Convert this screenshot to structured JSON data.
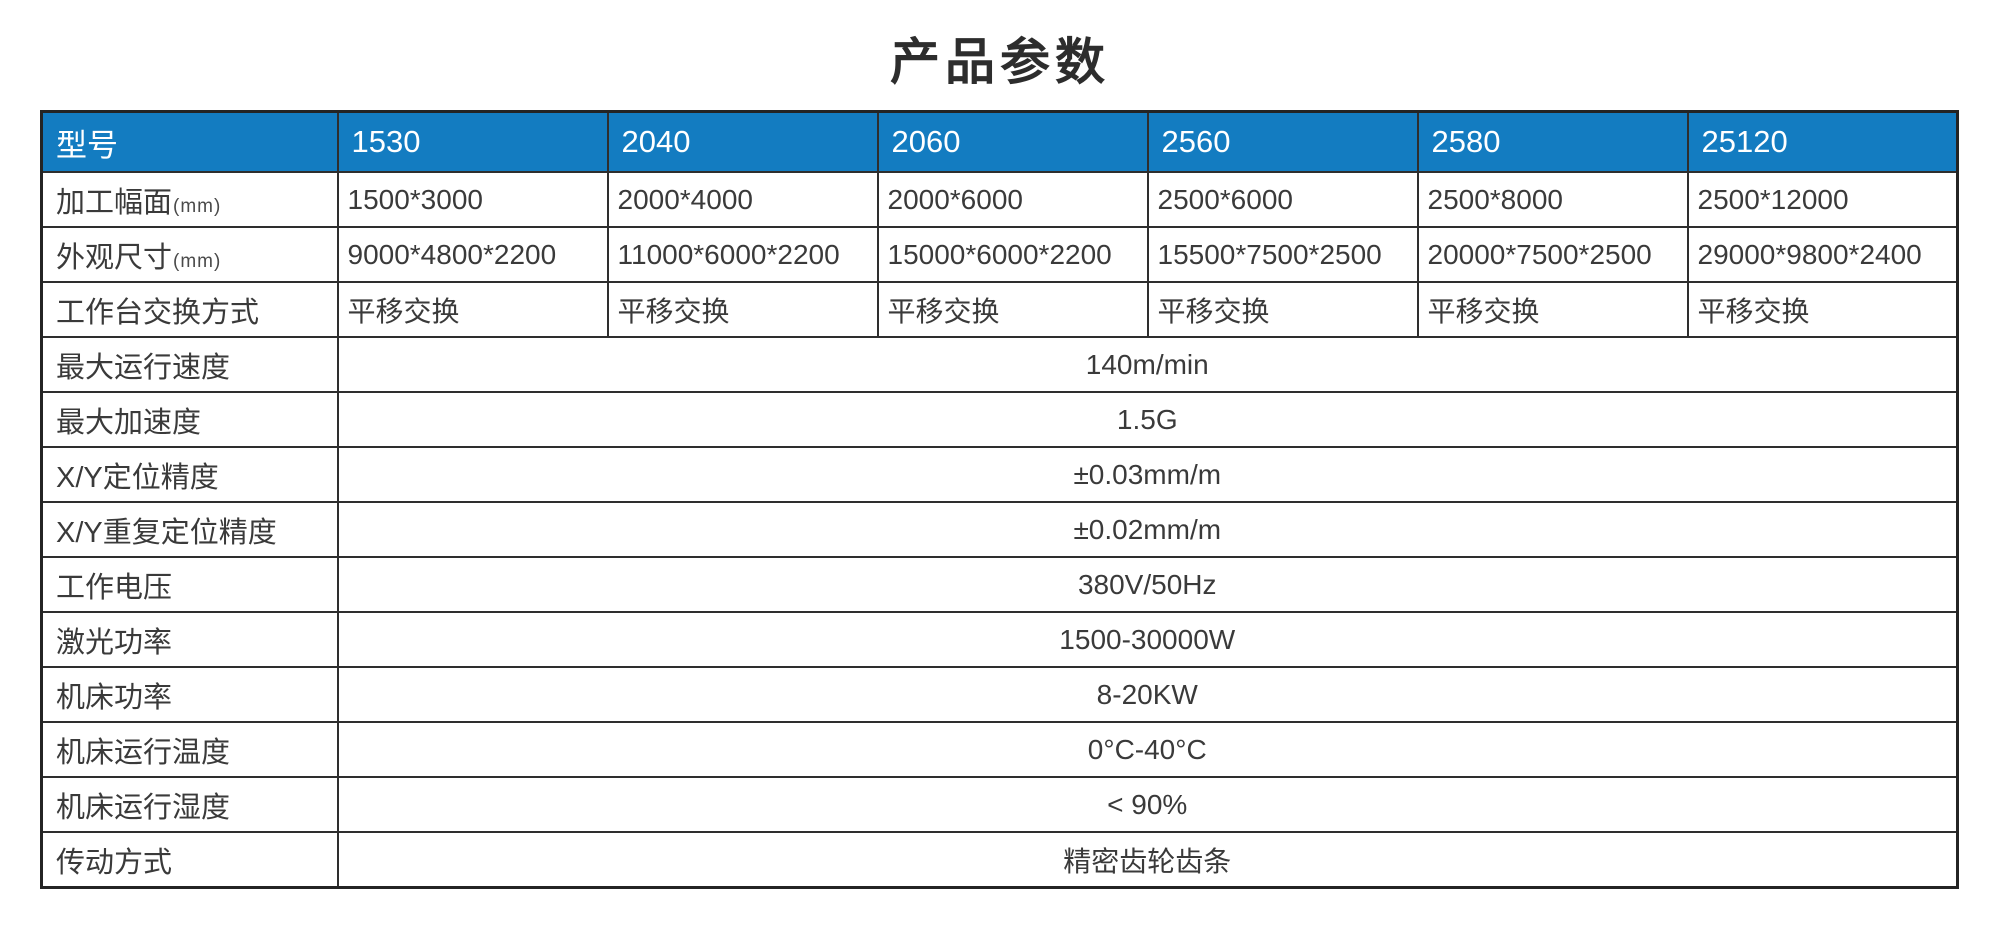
{
  "title": "产品参数",
  "colors": {
    "header_bg": "#137CC1",
    "header_text": "#ffffff",
    "border": "#2e2e2e",
    "body_text": "#3a3a3a",
    "page_bg": "#ffffff"
  },
  "table": {
    "header": {
      "label": "型号",
      "models": [
        "1530",
        "2040",
        "2060",
        "2560",
        "2580",
        "25120"
      ]
    },
    "per_model_rows": [
      {
        "label": "加工幅面",
        "unit": "(mm)",
        "values": [
          "1500*3000",
          "2000*4000",
          "2000*6000",
          "2500*6000",
          "2500*8000",
          "2500*12000"
        ]
      },
      {
        "label": "外观尺寸",
        "unit": "(mm)",
        "values": [
          "9000*4800*2200",
          "11000*6000*2200",
          "15000*6000*2200",
          "15500*7500*2500",
          "20000*7500*2500",
          "29000*9800*2400"
        ]
      },
      {
        "label": "工作台交换方式",
        "unit": "",
        "values": [
          "平移交换",
          "平移交换",
          "平移交换",
          "平移交换",
          "平移交换",
          "平移交换"
        ]
      }
    ],
    "merged_rows": [
      {
        "label": "最大运行速度",
        "value": "140m/min"
      },
      {
        "label": "最大加速度",
        "value": "1.5G"
      },
      {
        "label": "X/Y定位精度",
        "value": "±0.03mm/m"
      },
      {
        "label": "X/Y重复定位精度",
        "value": "±0.02mm/m"
      },
      {
        "label": "工作电压",
        "value": "380V/50Hz"
      },
      {
        "label": "激光功率",
        "value": "1500-30000W"
      },
      {
        "label": "机床功率",
        "value": "8-20KW"
      },
      {
        "label": "机床运行温度",
        "value": "0°C-40°C"
      },
      {
        "label": "机床运行湿度",
        "value": "< 90%"
      },
      {
        "label": "传动方式",
        "value": "精密齿轮齿条"
      }
    ]
  }
}
